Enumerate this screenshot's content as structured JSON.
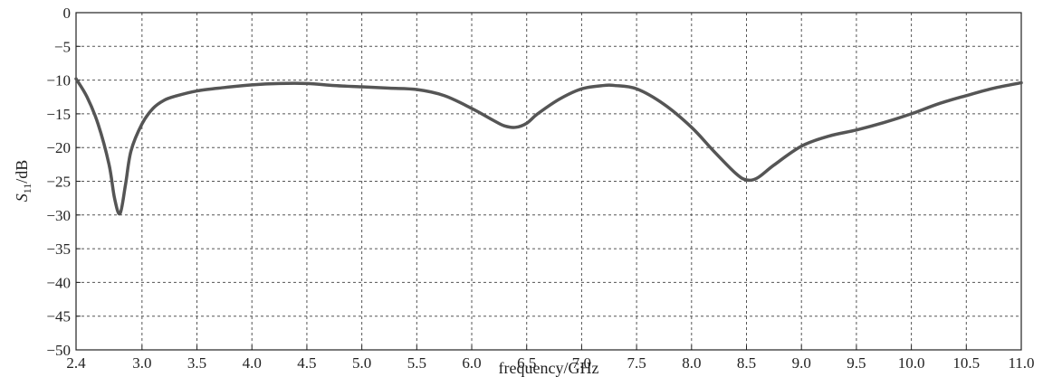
{
  "chart_data": {
    "type": "line",
    "xlabel": "frequency/GHz",
    "ylabel_main": "S",
    "ylabel_sub": "11",
    "ylabel_unit": "/dB",
    "xlim": [
      2.4,
      11.0
    ],
    "ylim": [
      -50,
      0
    ],
    "grid": true,
    "x_ticks": [
      2.4,
      3.0,
      3.5,
      4.0,
      4.5,
      5.0,
      5.5,
      6.0,
      6.5,
      7.0,
      7.5,
      8.0,
      8.5,
      9.0,
      9.5,
      10.0,
      10.5,
      11.0
    ],
    "x_tick_labels": [
      "2.4",
      "3.0",
      "3.5",
      "4.0",
      "4.5",
      "5.0",
      "5.5",
      "6.0",
      "6.5",
      "7.0",
      "7.5",
      "8.0",
      "8.5",
      "9.0",
      "9.5",
      "10.0",
      "10.5",
      "11.0"
    ],
    "y_ticks": [
      0,
      -5,
      -10,
      -15,
      -20,
      -25,
      -30,
      -35,
      -40,
      -45,
      -50
    ],
    "y_tick_labels": [
      "0",
      "−5",
      "−10",
      "−15",
      "−20",
      "−25",
      "−30",
      "−35",
      "−40",
      "−45",
      "−50"
    ],
    "series": [
      {
        "color": "#555555",
        "x": [
          2.4,
          2.5,
          2.6,
          2.7,
          2.75,
          2.8,
          2.85,
          2.9,
          3.0,
          3.1,
          3.2,
          3.3,
          3.5,
          3.75,
          4.0,
          4.25,
          4.5,
          4.75,
          5.0,
          5.25,
          5.5,
          5.75,
          6.0,
          6.2,
          6.3,
          6.4,
          6.5,
          6.6,
          6.8,
          7.0,
          7.2,
          7.3,
          7.5,
          7.75,
          8.0,
          8.2,
          8.4,
          8.5,
          8.6,
          8.75,
          9.0,
          9.25,
          9.5,
          9.75,
          10.0,
          10.25,
          10.5,
          10.75,
          11.0
        ],
        "y": [
          -9.8,
          -12.5,
          -16.5,
          -22.5,
          -27.5,
          -29.8,
          -25.5,
          -20.5,
          -16.5,
          -14.2,
          -13.0,
          -12.4,
          -11.6,
          -11.1,
          -10.7,
          -10.5,
          -10.5,
          -10.8,
          -11.0,
          -11.2,
          -11.4,
          -12.3,
          -14.2,
          -16.0,
          -16.8,
          -17.0,
          -16.4,
          -15.0,
          -12.8,
          -11.3,
          -10.8,
          -10.8,
          -11.3,
          -13.6,
          -17.0,
          -20.5,
          -23.8,
          -24.8,
          -24.5,
          -22.6,
          -19.8,
          -18.3,
          -17.4,
          -16.3,
          -15.0,
          -13.5,
          -12.3,
          -11.2,
          -10.4
        ]
      }
    ]
  }
}
